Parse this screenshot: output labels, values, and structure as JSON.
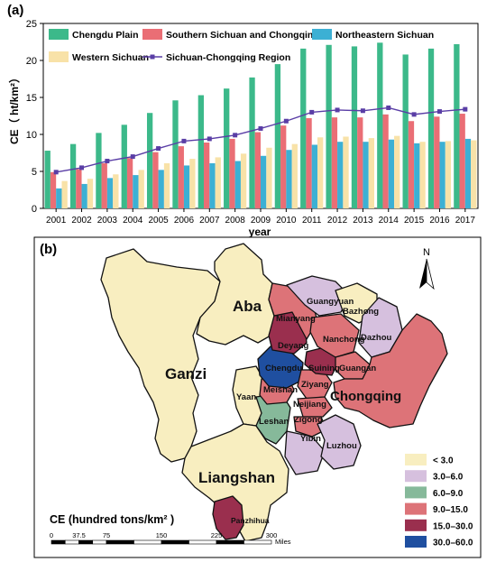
{
  "chart_data": [
    {
      "type": "bar",
      "panel_label": "(a)",
      "categories": [
        "2001",
        "2002",
        "2003",
        "2004",
        "2005",
        "2006",
        "2007",
        "2008",
        "2009",
        "2010",
        "2011",
        "2012",
        "2013",
        "2014",
        "2015",
        "2016",
        "2017"
      ],
      "series": [
        {
          "name": "Chengdu Plain",
          "kind": "bar",
          "color": "#3cb98a",
          "values": [
            7.8,
            8.7,
            10.2,
            11.3,
            12.9,
            14.6,
            15.3,
            16.2,
            17.7,
            19.5,
            21.6,
            22.1,
            21.9,
            22.4,
            20.8,
            21.6,
            22.2
          ]
        },
        {
          "name": "Southern Sichuan and Chongqing",
          "kind": "bar",
          "color": "#ea6e75",
          "values": [
            4.9,
            5.3,
            6.1,
            6.8,
            7.6,
            8.4,
            8.9,
            9.4,
            10.3,
            11.2,
            12.2,
            12.3,
            12.3,
            12.7,
            11.8,
            12.4,
            12.8
          ]
        },
        {
          "name": "Northeastern Sichuan",
          "kind": "bar",
          "color": "#3cb0d4",
          "values": [
            2.7,
            3.3,
            4.1,
            4.5,
            5.2,
            5.8,
            6.1,
            6.4,
            7.1,
            7.9,
            8.6,
            9.0,
            9.0,
            9.3,
            8.8,
            9.0,
            9.4
          ]
        },
        {
          "name": "Western Sichuan",
          "kind": "bar",
          "color": "#f8e2a8",
          "values": [
            3.7,
            4.0,
            4.6,
            5.2,
            6.1,
            6.7,
            6.9,
            7.4,
            8.2,
            8.7,
            9.6,
            9.7,
            9.5,
            9.8,
            9.0,
            9.1,
            9.2
          ]
        },
        {
          "name": "Sichuan-Chongqing Region",
          "kind": "line",
          "color": "#5a3ea6",
          "values": [
            4.9,
            5.5,
            6.4,
            7.0,
            8.1,
            9.1,
            9.4,
            9.9,
            10.8,
            11.8,
            13.0,
            13.3,
            13.2,
            13.6,
            12.7,
            13.1,
            13.4
          ]
        }
      ],
      "ylabel": "CE（ ht/km²）",
      "xlabel": "year",
      "ylim": [
        0,
        25
      ],
      "yticks": [
        0,
        5,
        10,
        15,
        20,
        25
      ],
      "legend_position": "top"
    },
    {
      "type": "map",
      "panel_label": "(b)",
      "legend_title": "CE (hundred tons/km² )",
      "classes": [
        {
          "label": "< 3.0",
          "color": "#f8eec0"
        },
        {
          "label": "3.0–6.0",
          "color": "#d6c0de"
        },
        {
          "label": "6.0–9.0",
          "color": "#86b99a"
        },
        {
          "label": "9.0–15.0",
          "color": "#dd7378"
        },
        {
          "label": "15.0–30.0",
          "color": "#9a2f4e"
        },
        {
          "label": "30.0–60.0",
          "color": "#1f4fa0"
        }
      ],
      "regions": [
        {
          "name": "Aba",
          "class": "< 3.0"
        },
        {
          "name": "Ganzi",
          "class": "< 3.0"
        },
        {
          "name": "Liangshan",
          "class": "< 3.0"
        },
        {
          "name": "Yaan",
          "class": "< 3.0"
        },
        {
          "name": "Guangyuan",
          "class": "3.0–6.0"
        },
        {
          "name": "Bazhong",
          "class": "< 3.0"
        },
        {
          "name": "Dazhou",
          "class": "3.0–6.0"
        },
        {
          "name": "Mianyang",
          "class": "9.0–15.0"
        },
        {
          "name": "Nanchong",
          "class": "9.0–15.0"
        },
        {
          "name": "Deyang",
          "class": "15.0–30.0"
        },
        {
          "name": "Chengdu",
          "class": "30.0–60.0"
        },
        {
          "name": "Suining",
          "class": "15.0–30.0"
        },
        {
          "name": "Guangan",
          "class": "9.0–15.0"
        },
        {
          "name": "Ziyang",
          "class": "9.0–15.0"
        },
        {
          "name": "Meishan",
          "class": "9.0–15.0"
        },
        {
          "name": "Leshan",
          "class": "6.0–9.0"
        },
        {
          "name": "Neijiang",
          "class": "9.0–15.0"
        },
        {
          "name": "Zigong",
          "class": "9.0–15.0"
        },
        {
          "name": "Yibin",
          "class": "3.0–6.0"
        },
        {
          "name": "Luzhou",
          "class": "3.0–6.0"
        },
        {
          "name": "Chongqing",
          "class": "9.0–15.0"
        },
        {
          "name": "Panzhihua",
          "class": "15.0–30.0"
        }
      ],
      "north_label": "N",
      "scale_labels": [
        "0",
        "37.5",
        "75",
        "150",
        "225",
        "300"
      ],
      "scale_unit": "Miles"
    }
  ]
}
